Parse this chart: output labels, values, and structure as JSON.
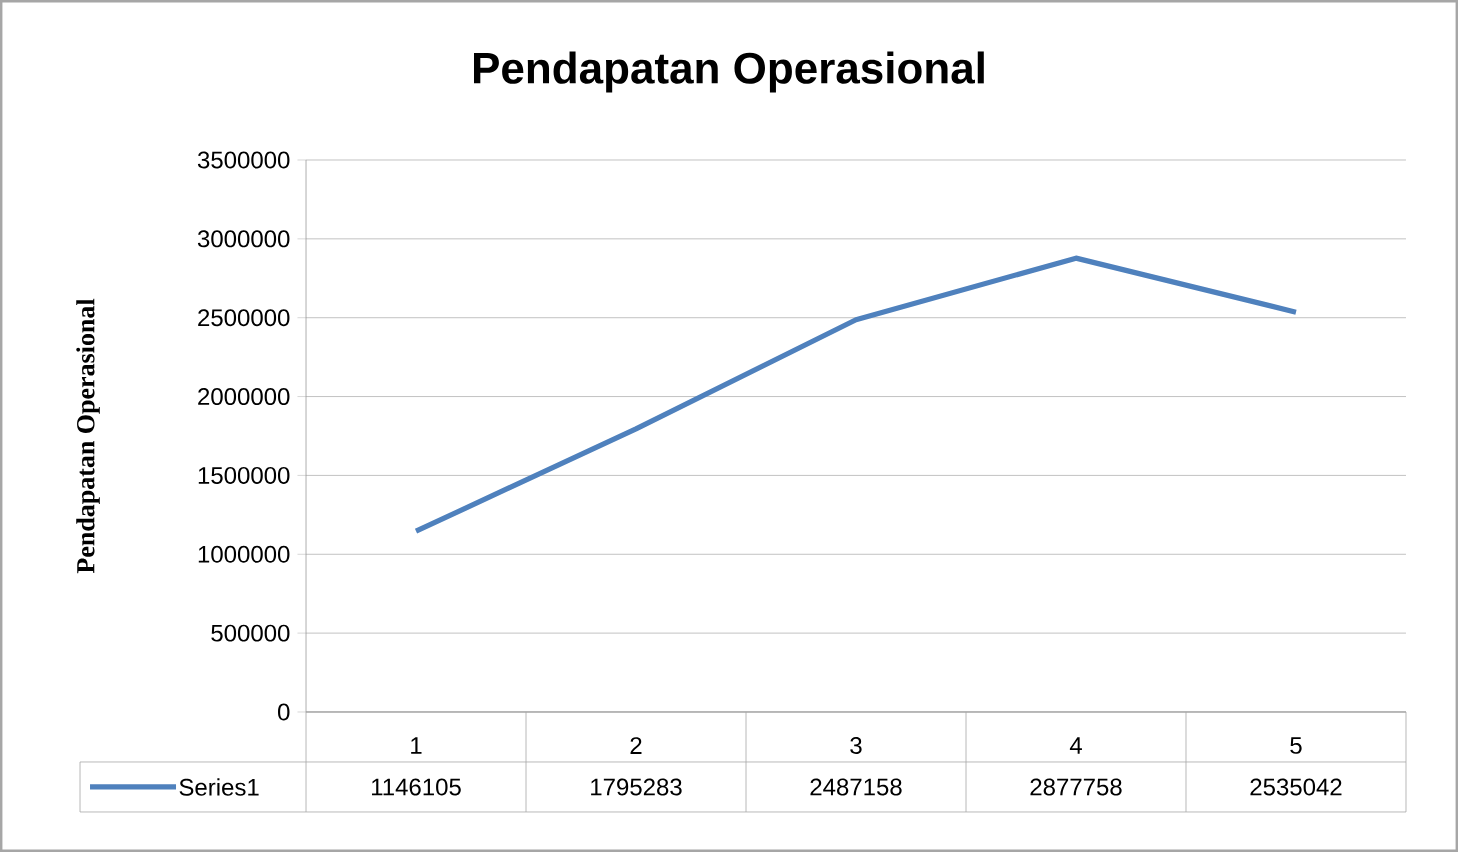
{
  "chart_data": {
    "type": "line",
    "title": "Pendapatan Operasional",
    "ylabel": "Pendapatan Operasional",
    "categories": [
      "1",
      "2",
      "3",
      "4",
      "5"
    ],
    "series": [
      {
        "name": "Series1",
        "color": "#4f81bd",
        "values": [
          1146105,
          1795283,
          2487158,
          2877758,
          2535042
        ]
      }
    ],
    "ylim": [
      0,
      3500000
    ],
    "yticks": [
      0,
      500000,
      1000000,
      1500000,
      2000000,
      2500000,
      3000000,
      3500000
    ],
    "grid": "y",
    "data_labels": true,
    "marker": "none"
  }
}
